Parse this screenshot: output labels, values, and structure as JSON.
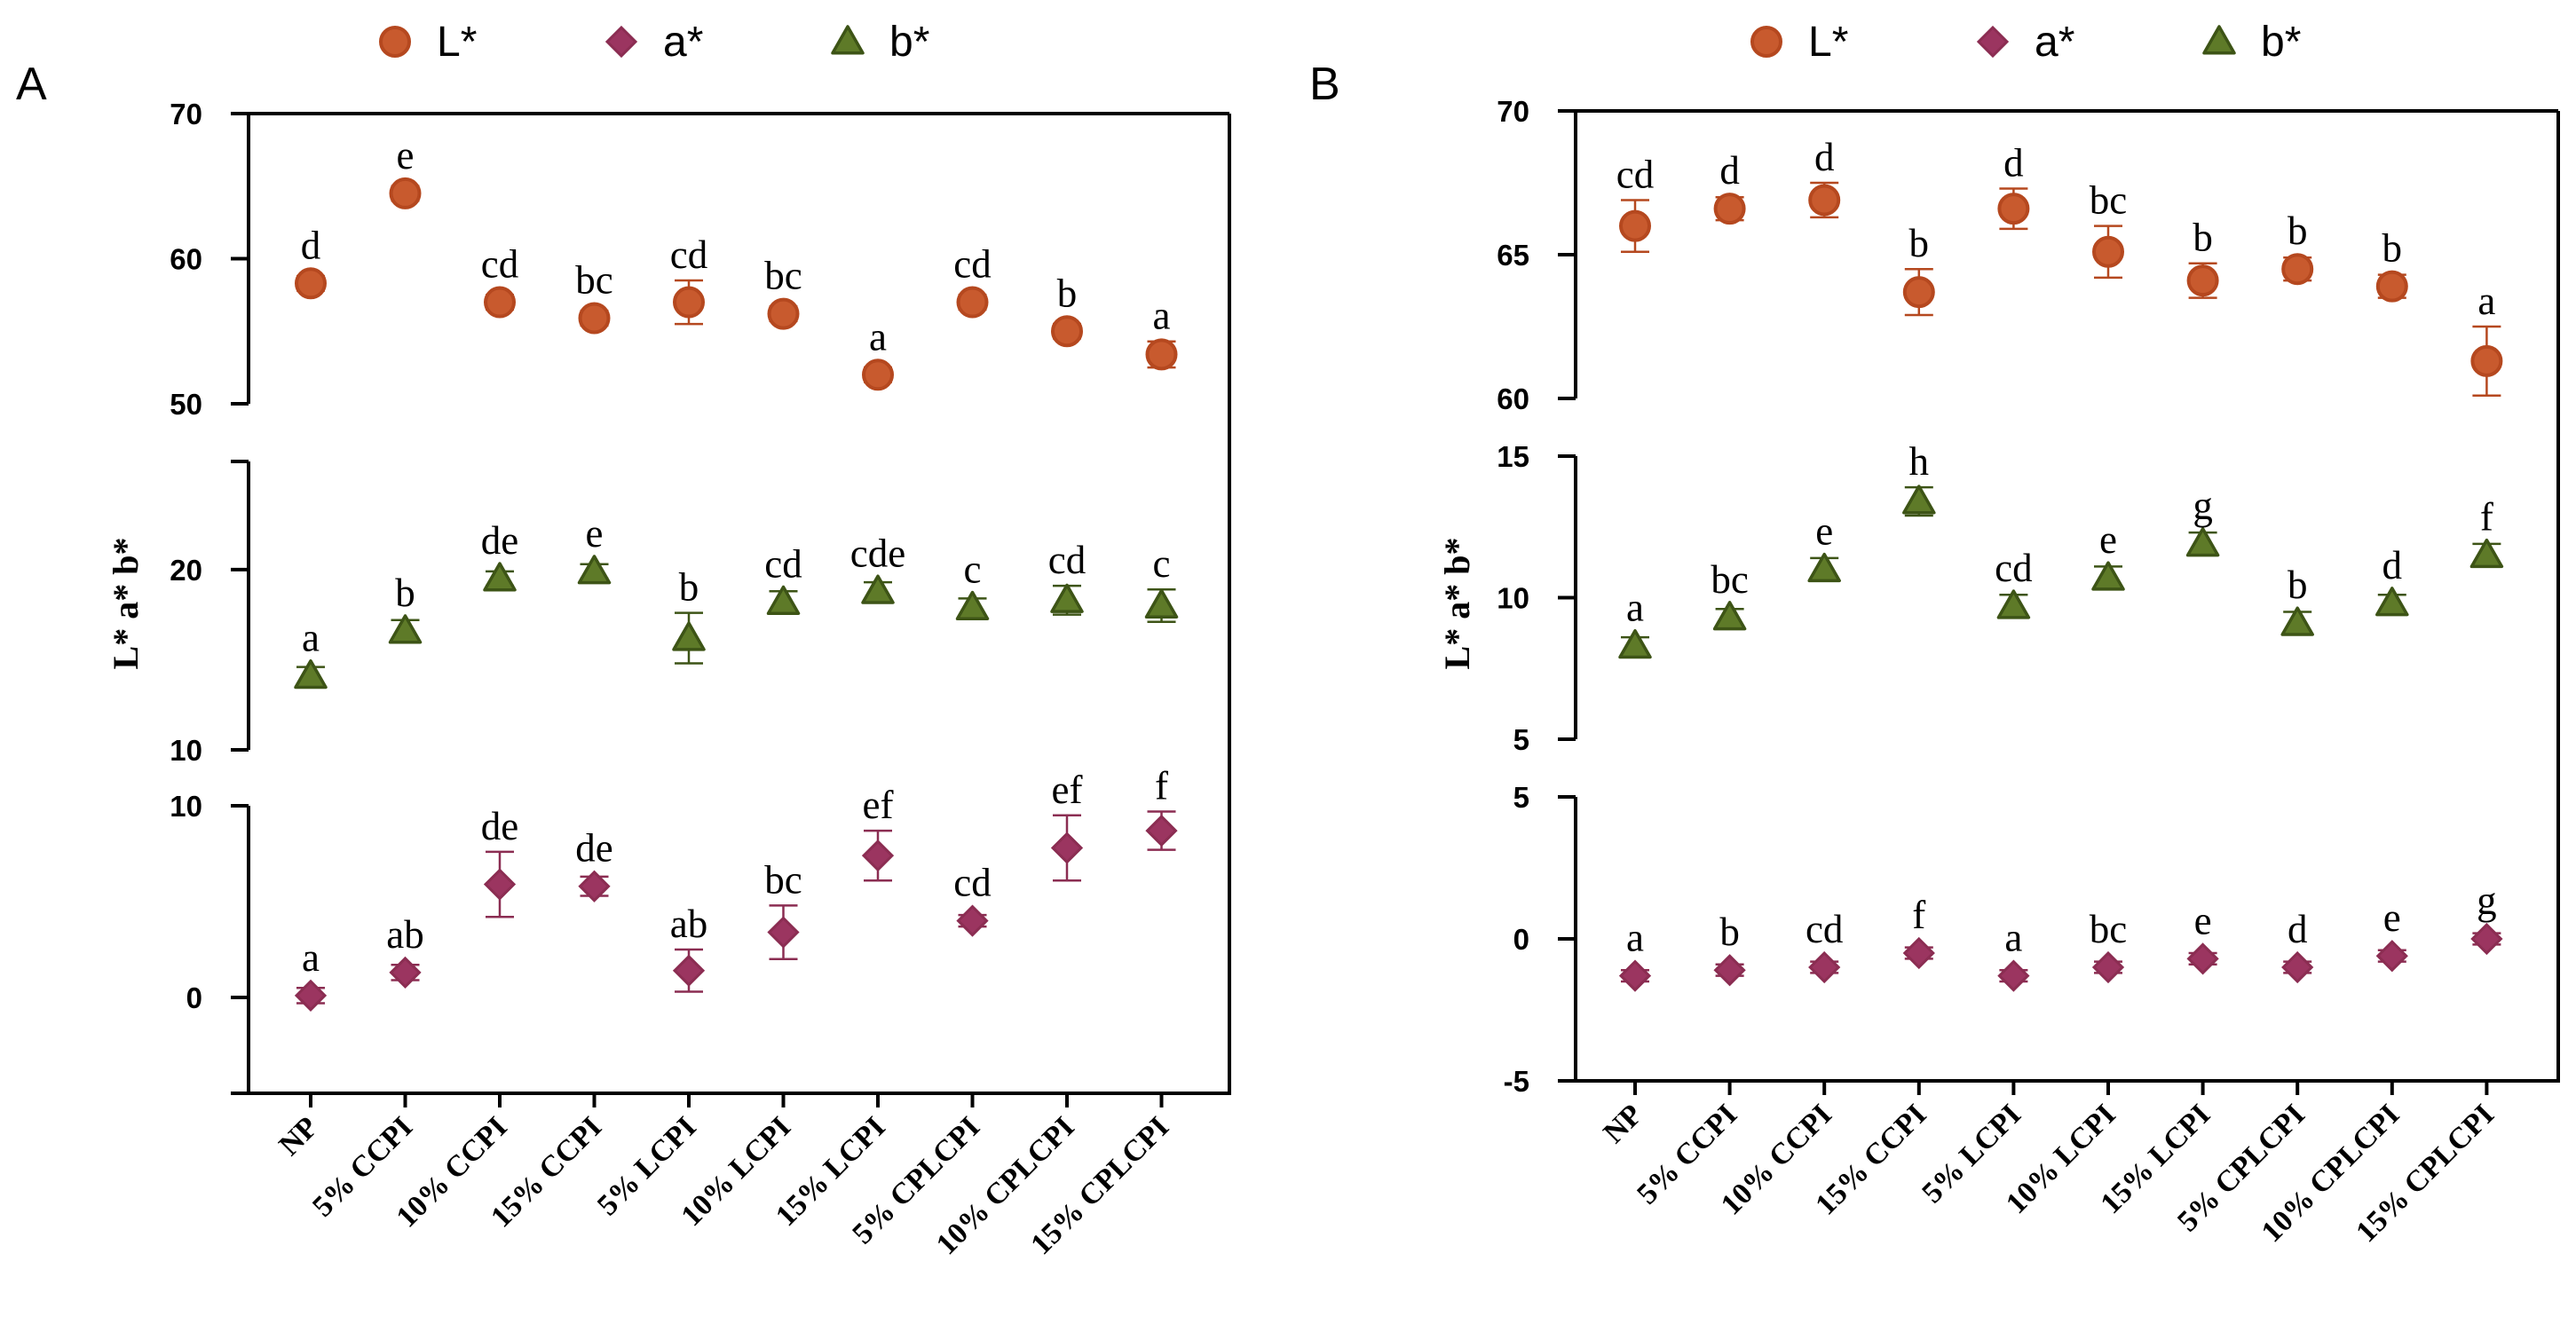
{
  "colors": {
    "L": "#b5481f",
    "L_fill": "#c85a2e",
    "a": "#8b2d52",
    "a_fill": "#9b3560",
    "b": "#3d5416",
    "b_fill": "#5e7a28",
    "axis": "#000000"
  },
  "chart_data": [
    {
      "type": "scatter",
      "panel": "A",
      "ylabel": "L*  a*  b*",
      "categories": [
        "NP",
        "5% CCPI",
        "10% CCPI",
        "15% CCPI",
        "5% LCPI",
        "10% LCPI",
        "15% LCPI",
        "5% CPLCPI",
        "10% CPLCPI",
        "15% CPLCPI"
      ],
      "legend": [
        "L*",
        "a*",
        "b*"
      ],
      "segments": [
        {
          "name": "L*",
          "marker": "circle",
          "ylim": [
            50,
            70
          ],
          "ticks": [
            50,
            60,
            70
          ],
          "values": [
            58.3,
            64.5,
            57.0,
            55.9,
            57.0,
            56.2,
            52.0,
            57.0,
            55.0,
            53.4
          ],
          "errors": [
            0.5,
            0.5,
            0.5,
            0.5,
            1.5,
            0.5,
            0.5,
            0.5,
            0.5,
            0.9
          ],
          "labels": [
            "d",
            "e",
            "cd",
            "bc",
            "cd",
            "bc",
            "a",
            "cd",
            "b",
            "a"
          ]
        },
        {
          "name": "b*",
          "marker": "triangle",
          "ylim": [
            10,
            26
          ],
          "ticks": [
            10,
            20
          ],
          "values": [
            14.1,
            16.6,
            19.5,
            19.9,
            16.2,
            18.2,
            18.8,
            17.9,
            18.3,
            18.0
          ],
          "errors": [
            0.5,
            0.6,
            0.4,
            0.4,
            1.4,
            0.6,
            0.5,
            0.5,
            0.8,
            0.9
          ],
          "labels": [
            "a",
            "b",
            "de",
            "e",
            "b",
            "cd",
            "cde",
            "c",
            "cd",
            "c"
          ]
        },
        {
          "name": "a*",
          "marker": "diamond",
          "ylim": [
            -5,
            10
          ],
          "ticks": [
            0,
            10
          ],
          "values": [
            0.1,
            1.3,
            5.9,
            5.8,
            1.4,
            3.4,
            7.4,
            4.0,
            7.8,
            8.7
          ],
          "errors": [
            0.4,
            0.4,
            1.7,
            0.5,
            1.1,
            1.4,
            1.3,
            0.3,
            1.7,
            1.0
          ],
          "labels": [
            "a",
            "ab",
            "de",
            "de",
            "ab",
            "bc",
            "ef",
            "cd",
            "ef",
            "f"
          ]
        }
      ]
    },
    {
      "type": "scatter",
      "panel": "B",
      "ylabel": "L*  a*  b*",
      "categories": [
        "NP",
        "5% CCPI",
        "10% CCPI",
        "15% CCPI",
        "5% LCPI",
        "10% LCPI",
        "15% LCPI",
        "5% CPLCPI",
        "10% CPLCPI",
        "15% CPLCPI"
      ],
      "legend": [
        "L*",
        "a*",
        "b*"
      ],
      "segments": [
        {
          "name": "L*",
          "marker": "circle",
          "ylim": [
            60,
            70
          ],
          "ticks": [
            60,
            65,
            70
          ],
          "values": [
            66.0,
            66.6,
            66.9,
            63.7,
            66.6,
            65.1,
            64.1,
            64.5,
            63.9,
            61.3
          ],
          "errors": [
            0.9,
            0.4,
            0.6,
            0.8,
            0.7,
            0.9,
            0.6,
            0.4,
            0.4,
            1.2
          ],
          "labels": [
            "cd",
            "d",
            "d",
            "b",
            "d",
            "bc",
            "b",
            "b",
            "b",
            "a"
          ]
        },
        {
          "name": "b*",
          "marker": "triangle",
          "ylim": [
            5,
            15
          ],
          "ticks": [
            5,
            10,
            15
          ],
          "values": [
            8.3,
            9.3,
            11.0,
            13.4,
            9.7,
            10.7,
            11.9,
            9.1,
            9.8,
            11.5
          ],
          "errors": [
            0.3,
            0.3,
            0.4,
            0.5,
            0.4,
            0.4,
            0.4,
            0.4,
            0.3,
            0.4
          ],
          "labels": [
            "a",
            "bc",
            "e",
            "h",
            "cd",
            "e",
            "g",
            "b",
            "d",
            "f"
          ]
        },
        {
          "name": "a*",
          "marker": "diamond",
          "ylim": [
            -5,
            5
          ],
          "ticks": [
            -5,
            0,
            5
          ],
          "values": [
            -1.3,
            -1.1,
            -1.0,
            -0.5,
            -1.3,
            -1.0,
            -0.7,
            -1.0,
            -0.6,
            0.0
          ],
          "errors": [
            0.2,
            0.2,
            0.2,
            0.2,
            0.2,
            0.2,
            0.2,
            0.2,
            0.2,
            0.2
          ],
          "labels": [
            "a",
            "b",
            "cd",
            "f",
            "a",
            "bc",
            "e",
            "d",
            "e",
            "g"
          ]
        }
      ]
    }
  ]
}
